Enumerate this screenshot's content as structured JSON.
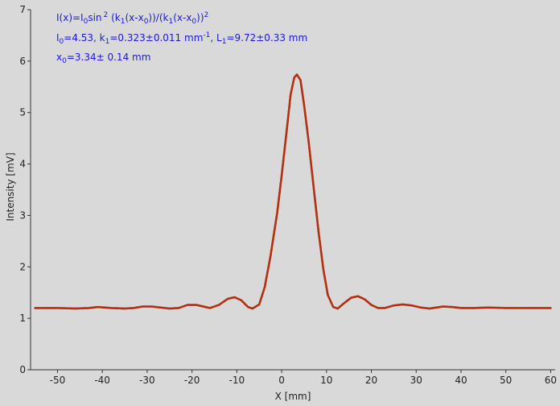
{
  "chart_data": {
    "type": "scatter",
    "xlabel": "X [mm]",
    "ylabel": "Intensity [mV]",
    "xlim": [
      -56,
      61
    ],
    "ylim": [
      0,
      7
    ],
    "xticks": [
      -50,
      -40,
      -30,
      -20,
      -10,
      0,
      10,
      20,
      30,
      40,
      50,
      60
    ],
    "yticks": [
      0,
      1,
      2,
      3,
      4,
      5,
      6,
      7
    ],
    "grid": false,
    "series": [
      {
        "color": "#c0280f",
        "fit_color": "#5a6b16",
        "points": [
          [
            -55,
            1.2
          ],
          [
            -50,
            1.2
          ],
          [
            -46,
            1.19
          ],
          [
            -43,
            1.2
          ],
          [
            -41,
            1.22
          ],
          [
            -38,
            1.2
          ],
          [
            -35,
            1.19
          ],
          [
            -33,
            1.2
          ],
          [
            -31,
            1.23
          ],
          [
            -29,
            1.23
          ],
          [
            -27,
            1.21
          ],
          [
            -25,
            1.19
          ],
          [
            -23,
            1.2
          ],
          [
            -21,
            1.26
          ],
          [
            -19,
            1.26
          ],
          [
            -17,
            1.22
          ],
          [
            -16,
            1.2
          ],
          [
            -14,
            1.26
          ],
          [
            -12,
            1.38
          ],
          [
            -10.5,
            1.41
          ],
          [
            -9,
            1.35
          ],
          [
            -7.5,
            1.22
          ],
          [
            -6.5,
            1.19
          ],
          [
            -5,
            1.27
          ],
          [
            -3.8,
            1.6
          ],
          [
            -2.5,
            2.2
          ],
          [
            -1,
            3.05
          ],
          [
            0,
            3.78
          ],
          [
            1,
            4.55
          ],
          [
            2,
            5.35
          ],
          [
            2.8,
            5.68
          ],
          [
            3.4,
            5.74
          ],
          [
            4.2,
            5.63
          ],
          [
            5,
            5.15
          ],
          [
            6,
            4.45
          ],
          [
            7,
            3.65
          ],
          [
            8.2,
            2.7
          ],
          [
            9.3,
            1.95
          ],
          [
            10.3,
            1.45
          ],
          [
            11.5,
            1.22
          ],
          [
            12.5,
            1.19
          ],
          [
            14,
            1.3
          ],
          [
            15.5,
            1.4
          ],
          [
            17,
            1.43
          ],
          [
            18.5,
            1.37
          ],
          [
            20,
            1.26
          ],
          [
            21.5,
            1.2
          ],
          [
            23,
            1.2
          ],
          [
            25,
            1.25
          ],
          [
            27,
            1.27
          ],
          [
            29,
            1.25
          ],
          [
            31,
            1.21
          ],
          [
            33,
            1.19
          ],
          [
            36,
            1.23
          ],
          [
            38,
            1.22
          ],
          [
            40,
            1.2
          ],
          [
            43,
            1.2
          ],
          [
            46,
            1.21
          ],
          [
            50,
            1.2
          ],
          [
            55,
            1.2
          ],
          [
            60,
            1.2
          ]
        ]
      }
    ],
    "annotations": {
      "formula": {
        "a": "I(x)=I",
        "b": "0",
        "c": "sin",
        "d": "2",
        "e": " (k",
        "f": "1",
        "g": "(x-x",
        "h": "0",
        "i": "))/(k",
        "j": "1",
        "k": "(x-x",
        "l": "0",
        "m": "))",
        "n": "2"
      },
      "params": {
        "a": "I",
        "b": "0",
        "c": "=4.53,  k",
        "d": "1",
        "e": "=0.323±0.011 mm",
        "f": "-1",
        "g": ",   L",
        "h": "1",
        "i": "=9.72±0.33 mm"
      },
      "x0": {
        "a": "x",
        "b": "0",
        "c": "=3.34±  0.14 mm"
      }
    }
  }
}
